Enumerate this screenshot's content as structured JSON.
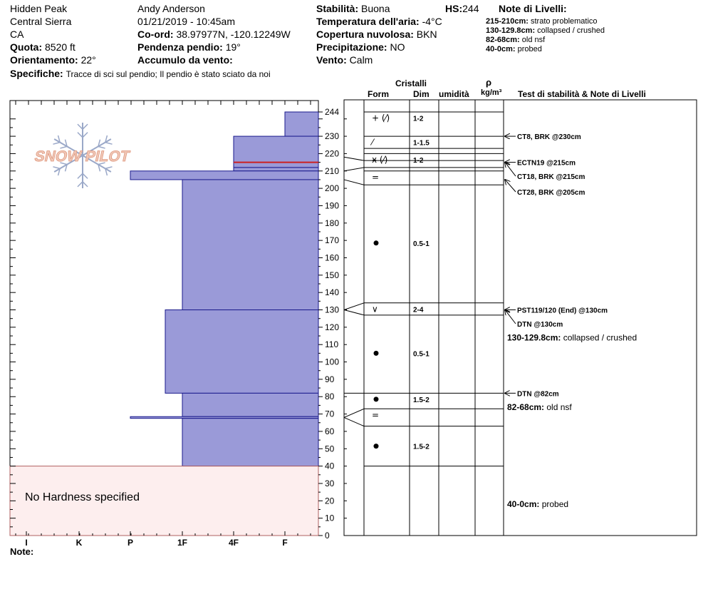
{
  "header": {
    "site": "Hidden Peak",
    "range": "Central Sierra",
    "state": "CA",
    "elevation_label": "Quota:",
    "elevation_value": "8520 ft",
    "aspect_label": "Orientamento:",
    "aspect_value": "22°",
    "observer": "Andy Anderson",
    "datetime": "01/21/2019 - 10:45am",
    "coords_label": "Co-ord:",
    "coords_value": "38.97977N, -120.12249W",
    "slope_label": "Pendenza pendio:",
    "slope_value": "19°",
    "wind_loading_label": "Accumulo da vento:",
    "wind_loading_value": "",
    "stability_label": "Stabilità:",
    "stability_value": "Buona",
    "hs_label": "HS:",
    "hs_value": "244",
    "air_temp_label": "Temperatura dell'aria:",
    "air_temp_value": "-4°C",
    "cloud_label": "Copertura nuvolosa:",
    "cloud_value": "BKN",
    "precip_label": "Precipitazione:",
    "precip_value": "NO",
    "wind_label": "Vento:",
    "wind_value": "Calm",
    "specifics_label": "Specifiche:",
    "specifics_value": "Tracce di sci sul pendio;  Il pendio è stato sciato da noi",
    "layer_notes_title": "Note di Livelli:",
    "layer_notes": [
      {
        "range": "215-210cm:",
        "text": "strato problematico"
      },
      {
        "range": "130-129.8cm:",
        "text": "collapsed / crushed"
      },
      {
        "range": "82-68cm:",
        "text": "old nsf"
      },
      {
        "range": "40-0cm:",
        "text": "probed"
      }
    ]
  },
  "columns": {
    "crystals": "Cristalli",
    "form": "Form",
    "size": "Dim",
    "moisture": "umidità",
    "rho": "ρ",
    "density_unit": "kg/m³",
    "tests": "Test di stabilità & Note di Livelli"
  },
  "logo_text": "SNOW PILOT",
  "no_hardness_text": "No Hardness specified",
  "note_label": "Note:",
  "colors": {
    "layer_fill": "#9a9ad8",
    "layer_border": "#1a1a8c",
    "no_hardness_fill": "#fdeeee",
    "no_hardness_border": "#b06060",
    "problem_line": "#cc2020",
    "logo": "#f0c8b8"
  },
  "chart_data": {
    "type": "snow_profile",
    "y_axis": {
      "min": 0,
      "max": 244,
      "ticks": [
        "0",
        "10",
        "20",
        "30",
        "40",
        "50",
        "60",
        "70",
        "80",
        "90",
        "100",
        "110",
        "120",
        "130",
        "140",
        "150",
        "160",
        "170",
        "180",
        "190",
        "200",
        "210",
        "220",
        "230",
        "244"
      ]
    },
    "x_axis": {
      "labels": [
        "I",
        "K",
        "P",
        "1F",
        "4F",
        "F"
      ]
    },
    "hardness_layers": [
      {
        "top": 244,
        "bottom": 230,
        "hardness": "F"
      },
      {
        "top": 230,
        "bottom": 212,
        "hardness": "4F"
      },
      {
        "top": 212,
        "bottom": 210,
        "hardness": "4F"
      },
      {
        "top": 210,
        "bottom": 205,
        "hardness": "P"
      },
      {
        "top": 205,
        "bottom": 130,
        "hardness": "1F"
      },
      {
        "top": 130,
        "bottom": 82,
        "hardness": "1F-"
      },
      {
        "top": 82,
        "bottom": 68.5,
        "hardness": "1F"
      },
      {
        "top": 68.5,
        "bottom": 67.5,
        "hardness": "P"
      },
      {
        "top": 67.5,
        "bottom": 40,
        "hardness": "1F"
      }
    ],
    "problem_layer_depth": 215,
    "no_hardness_range": [
      40,
      0
    ],
    "crystal_rows": [
      {
        "top": 244,
        "bottom": 237,
        "form": "+ (⁄)",
        "size": "1-2"
      },
      {
        "top": 230,
        "bottom": 223,
        "form": "⁄",
        "size": "1-1.5"
      },
      {
        "top": 220,
        "bottom": 213,
        "form": "ӿ (⁄)",
        "size": "1-2"
      },
      {
        "top": 210,
        "bottom": 203,
        "form": "=",
        "size": ""
      },
      {
        "top": 202,
        "bottom": 135,
        "form": "●",
        "size": "0.5-1"
      },
      {
        "top": 134,
        "bottom": 127,
        "form": "∨",
        "size": "2-4"
      },
      {
        "top": 125,
        "bottom": 85,
        "form": "●",
        "size": "0.5-1"
      },
      {
        "top": 82,
        "bottom": 75,
        "form": "●",
        "size": "1.5-2"
      },
      {
        "top": 73,
        "bottom": 66,
        "form": "=",
        "size": ""
      },
      {
        "top": 63,
        "bottom": 40,
        "form": "●",
        "size": "1.5-2"
      }
    ],
    "crystal_lines": [
      244,
      230,
      223,
      220,
      216,
      212,
      210,
      202,
      134,
      127,
      82,
      73,
      63,
      40
    ],
    "boundary_links": [
      {
        "from": 216,
        "to": 218
      },
      {
        "from": 212,
        "to": 210
      },
      {
        "from": 202,
        "to": 205
      },
      {
        "from": 134,
        "to": 130
      },
      {
        "from": 127,
        "to": 130
      },
      {
        "from": 82,
        "to": 82
      },
      {
        "from": 73,
        "to": 68
      },
      {
        "from": 63,
        "to": 68
      }
    ],
    "stability_tests": [
      {
        "label": "CT8, BRK @230cm",
        "depth": 230,
        "text_depth": 230,
        "arrow": true
      },
      {
        "label": "ECTN19 @215cm",
        "depth": 215,
        "text_depth": 215,
        "arrow": true
      },
      {
        "label": "CT18, BRK @215cm",
        "depth": 215,
        "text_depth": 207,
        "arrow": true
      },
      {
        "label": "CT28, BRK @205cm",
        "depth": 205,
        "text_depth": 198,
        "arrow": true
      },
      {
        "label": "PST119/120 (End) @130cm",
        "depth": 130,
        "text_depth": 130,
        "arrow": true
      },
      {
        "label": "DTN @130cm",
        "depth": 130,
        "text_depth": 122,
        "arrow": true
      },
      {
        "label": "DTN @82cm",
        "depth": 82,
        "text_depth": 82,
        "arrow": true
      }
    ],
    "layer_comments": [
      {
        "range": "130-129.8cm:",
        "text": "collapsed / crushed",
        "depth": 114
      },
      {
        "range": "82-68cm:",
        "text": "old nsf",
        "depth": 74
      },
      {
        "range": "40-0cm:",
        "text": "probed",
        "depth": 18
      }
    ]
  }
}
